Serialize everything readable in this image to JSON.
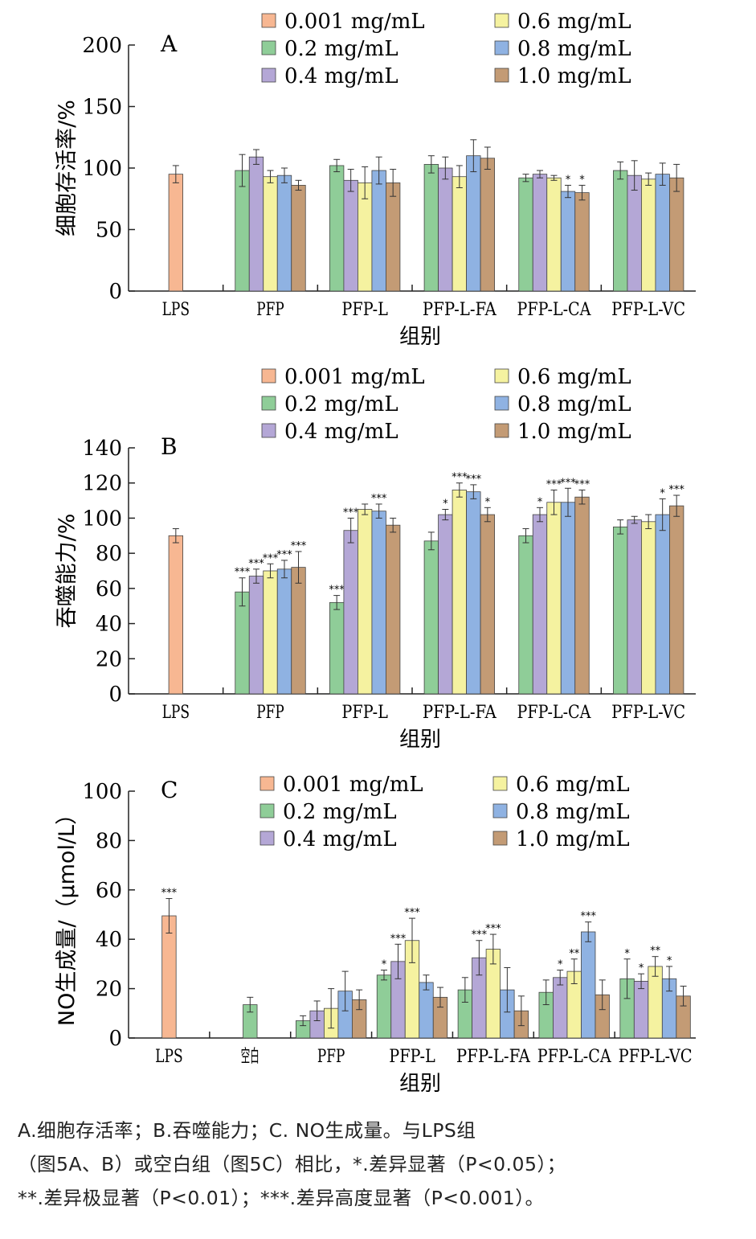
{
  "chart_data": [
    {
      "type": "bar",
      "panel_label": "A",
      "xlabel": "组别",
      "ylabel": "细胞存活率/%",
      "ylim": [
        0,
        200
      ],
      "yticks": [
        0,
        50,
        100,
        150,
        200
      ],
      "legend": [
        "0.001 mg/mL",
        "0.6 mg/mL",
        "0.2 mg/mL",
        "0.8 mg/mL",
        "0.4 mg/mL",
        "1.0 mg/mL"
      ],
      "categories": [
        {
          "name": "LPS",
          "bars": [
            {
              "series": "0.001 mg/mL",
              "value": 95,
              "err": 7,
              "sig": ""
            }
          ]
        },
        {
          "name": "PFP",
          "bars": [
            {
              "series": "0.2 mg/mL",
              "value": 98,
              "err": 13,
              "sig": ""
            },
            {
              "series": "0.4 mg/mL",
              "value": 109,
              "err": 6,
              "sig": ""
            },
            {
              "series": "0.6 mg/mL",
              "value": 93,
              "err": 5,
              "sig": ""
            },
            {
              "series": "0.8 mg/mL",
              "value": 94,
              "err": 6,
              "sig": ""
            },
            {
              "series": "1.0 mg/mL",
              "value": 86,
              "err": 4,
              "sig": ""
            }
          ]
        },
        {
          "name": "PFP-L",
          "bars": [
            {
              "series": "0.2 mg/mL",
              "value": 102,
              "err": 5,
              "sig": ""
            },
            {
              "series": "0.4 mg/mL",
              "value": 90,
              "err": 9,
              "sig": ""
            },
            {
              "series": "0.6 mg/mL",
              "value": 88,
              "err": 13,
              "sig": ""
            },
            {
              "series": "0.8 mg/mL",
              "value": 98,
              "err": 11,
              "sig": ""
            },
            {
              "series": "1.0 mg/mL",
              "value": 88,
              "err": 11,
              "sig": ""
            }
          ]
        },
        {
          "name": "PFP-L-FA",
          "bars": [
            {
              "series": "0.2 mg/mL",
              "value": 103,
              "err": 7,
              "sig": ""
            },
            {
              "series": "0.4 mg/mL",
              "value": 100,
              "err": 9,
              "sig": ""
            },
            {
              "series": "0.6 mg/mL",
              "value": 93,
              "err": 9,
              "sig": ""
            },
            {
              "series": "0.8 mg/mL",
              "value": 110,
              "err": 13,
              "sig": ""
            },
            {
              "series": "1.0 mg/mL",
              "value": 108,
              "err": 9,
              "sig": ""
            }
          ]
        },
        {
          "name": "PFP-L-CA",
          "bars": [
            {
              "series": "0.2 mg/mL",
              "value": 92,
              "err": 3,
              "sig": ""
            },
            {
              "series": "0.4 mg/mL",
              "value": 95,
              "err": 3,
              "sig": ""
            },
            {
              "series": "0.6 mg/mL",
              "value": 92,
              "err": 2,
              "sig": ""
            },
            {
              "series": "0.8 mg/mL",
              "value": 81,
              "err": 5,
              "sig": "*"
            },
            {
              "series": "1.0 mg/mL",
              "value": 80,
              "err": 6,
              "sig": "*"
            }
          ]
        },
        {
          "name": "PFP-L-VC",
          "bars": [
            {
              "series": "0.2 mg/mL",
              "value": 98,
              "err": 7,
              "sig": ""
            },
            {
              "series": "0.4 mg/mL",
              "value": 94,
              "err": 12,
              "sig": ""
            },
            {
              "series": "0.6 mg/mL",
              "value": 91,
              "err": 5,
              "sig": ""
            },
            {
              "series": "0.8 mg/mL",
              "value": 95,
              "err": 9,
              "sig": ""
            },
            {
              "series": "1.0 mg/mL",
              "value": 92,
              "err": 11,
              "sig": ""
            }
          ]
        }
      ]
    },
    {
      "type": "bar",
      "panel_label": "B",
      "xlabel": "组别",
      "ylabel": "吞噬能力/%",
      "ylim": [
        0,
        140
      ],
      "yticks": [
        0,
        20,
        40,
        60,
        80,
        100,
        120,
        140
      ],
      "legend": [
        "0.001 mg/mL",
        "0.6 mg/mL",
        "0.2 mg/mL",
        "0.8 mg/mL",
        "0.4 mg/mL",
        "1.0 mg/mL"
      ],
      "categories": [
        {
          "name": "LPS",
          "bars": [
            {
              "series": "0.001 mg/mL",
              "value": 90,
              "err": 4,
              "sig": ""
            }
          ]
        },
        {
          "name": "PFP",
          "bars": [
            {
              "series": "0.2 mg/mL",
              "value": 58,
              "err": 8,
              "sig": "***"
            },
            {
              "series": "0.4 mg/mL",
              "value": 67,
              "err": 4,
              "sig": "***"
            },
            {
              "series": "0.6 mg/mL",
              "value": 70,
              "err": 4,
              "sig": "***"
            },
            {
              "series": "0.8 mg/mL",
              "value": 71,
              "err": 5,
              "sig": "***"
            },
            {
              "series": "1.0 mg/mL",
              "value": 72,
              "err": 9,
              "sig": "***"
            }
          ]
        },
        {
          "name": "PFP-L",
          "bars": [
            {
              "series": "0.2 mg/mL",
              "value": 52,
              "err": 4,
              "sig": "***"
            },
            {
              "series": "0.4 mg/mL",
              "value": 93,
              "err": 7,
              "sig": "***"
            },
            {
              "series": "0.6 mg/mL",
              "value": 105,
              "err": 3,
              "sig": ""
            },
            {
              "series": "0.8 mg/mL",
              "value": 104,
              "err": 4,
              "sig": "***"
            },
            {
              "series": "1.0 mg/mL",
              "value": 96,
              "err": 4,
              "sig": ""
            }
          ]
        },
        {
          "name": "PFP-L-FA",
          "bars": [
            {
              "series": "0.2 mg/mL",
              "value": 87,
              "err": 5,
              "sig": ""
            },
            {
              "series": "0.4 mg/mL",
              "value": 102,
              "err": 3,
              "sig": "*"
            },
            {
              "series": "0.6 mg/mL",
              "value": 116,
              "err": 4,
              "sig": "***"
            },
            {
              "series": "0.8 mg/mL",
              "value": 115,
              "err": 4,
              "sig": "***"
            },
            {
              "series": "1.0 mg/mL",
              "value": 102,
              "err": 4,
              "sig": "*"
            }
          ]
        },
        {
          "name": "PFP-L-CA",
          "bars": [
            {
              "series": "0.2 mg/mL",
              "value": 90,
              "err": 4,
              "sig": ""
            },
            {
              "series": "0.4 mg/mL",
              "value": 102,
              "err": 4,
              "sig": "*"
            },
            {
              "series": "0.6 mg/mL",
              "value": 109,
              "err": 7,
              "sig": "***"
            },
            {
              "series": "0.8 mg/mL",
              "value": 109,
              "err": 8,
              "sig": "***"
            },
            {
              "series": "1.0 mg/mL",
              "value": 112,
              "err": 4,
              "sig": "***"
            }
          ]
        },
        {
          "name": "PFP-L-VC",
          "bars": [
            {
              "series": "0.2 mg/mL",
              "value": 95,
              "err": 4,
              "sig": ""
            },
            {
              "series": "0.4 mg/mL",
              "value": 99,
              "err": 2,
              "sig": ""
            },
            {
              "series": "0.6 mg/mL",
              "value": 98,
              "err": 4,
              "sig": ""
            },
            {
              "series": "0.8 mg/mL",
              "value": 102,
              "err": 9,
              "sig": "*"
            },
            {
              "series": "1.0 mg/mL",
              "value": 107,
              "err": 6,
              "sig": "***"
            }
          ]
        }
      ]
    },
    {
      "type": "bar",
      "panel_label": "C",
      "xlabel": "组别",
      "ylabel": "NO生成量/（μmol/L）",
      "ylim": [
        0,
        100
      ],
      "yticks": [
        0,
        20,
        40,
        60,
        80,
        100
      ],
      "legend": [
        "0.001 mg/mL",
        "0.6 mg/mL",
        "0.2 mg/mL",
        "0.8 mg/mL",
        "0.4 mg/mL",
        "1.0 mg/mL"
      ],
      "categories": [
        {
          "name": "LPS",
          "bars": [
            {
              "series": "0.001 mg/mL",
              "value": 49.5,
              "err": 7,
              "sig": "***"
            }
          ]
        },
        {
          "name": "空白",
          "bars": [
            {
              "series": "0.2 mg/mL",
              "value": 13.5,
              "err": 3,
              "sig": ""
            }
          ]
        },
        {
          "name": "PFP",
          "bars": [
            {
              "series": "0.2 mg/mL",
              "value": 7,
              "err": 2,
              "sig": ""
            },
            {
              "series": "0.4 mg/mL",
              "value": 11,
              "err": 4,
              "sig": ""
            },
            {
              "series": "0.6 mg/mL",
              "value": 12,
              "err": 8,
              "sig": ""
            },
            {
              "series": "0.8 mg/mL",
              "value": 19,
              "err": 8,
              "sig": ""
            },
            {
              "series": "1.0 mg/mL",
              "value": 15.5,
              "err": 4,
              "sig": ""
            }
          ]
        },
        {
          "name": "PFP-L",
          "bars": [
            {
              "series": "0.2 mg/mL",
              "value": 25.5,
              "err": 2,
              "sig": "*"
            },
            {
              "series": "0.4 mg/mL",
              "value": 31,
              "err": 7,
              "sig": "***"
            },
            {
              "series": "0.6 mg/mL",
              "value": 39.5,
              "err": 9,
              "sig": "***"
            },
            {
              "series": "0.8 mg/mL",
              "value": 22.5,
              "err": 3,
              "sig": ""
            },
            {
              "series": "1.0 mg/mL",
              "value": 16.5,
              "err": 4,
              "sig": ""
            }
          ]
        },
        {
          "name": "PFP-L-FA",
          "bars": [
            {
              "series": "0.2 mg/mL",
              "value": 19.5,
              "err": 5,
              "sig": ""
            },
            {
              "series": "0.4 mg/mL",
              "value": 32.5,
              "err": 7,
              "sig": "***"
            },
            {
              "series": "0.6 mg/mL",
              "value": 36,
              "err": 6,
              "sig": "***"
            },
            {
              "series": "0.8 mg/mL",
              "value": 19.5,
              "err": 9,
              "sig": ""
            },
            {
              "series": "1.0 mg/mL",
              "value": 11,
              "err": 6,
              "sig": ""
            }
          ]
        },
        {
          "name": "PFP-L-CA",
          "bars": [
            {
              "series": "0.2 mg/mL",
              "value": 18.5,
              "err": 5,
              "sig": ""
            },
            {
              "series": "0.4 mg/mL",
              "value": 24.5,
              "err": 3,
              "sig": "*"
            },
            {
              "series": "0.6 mg/mL",
              "value": 27,
              "err": 5,
              "sig": "**"
            },
            {
              "series": "0.8 mg/mL",
              "value": 43,
              "err": 4,
              "sig": "***"
            },
            {
              "series": "1.0 mg/mL",
              "value": 17.5,
              "err": 6,
              "sig": ""
            }
          ]
        },
        {
          "name": "PFP-L-VC",
          "bars": [
            {
              "series": "0.2 mg/mL",
              "value": 24,
              "err": 8,
              "sig": "*"
            },
            {
              "series": "0.4 mg/mL",
              "value": 23,
              "err": 3,
              "sig": "*"
            },
            {
              "series": "0.6 mg/mL",
              "value": 29,
              "err": 4,
              "sig": "**"
            },
            {
              "series": "0.8 mg/mL",
              "value": 24,
              "err": 5,
              "sig": "*"
            },
            {
              "series": "1.0 mg/mL",
              "value": 17,
              "err": 4,
              "sig": ""
            }
          ]
        }
      ]
    }
  ],
  "series_colors": {
    "0.001 mg/mL": "#f7b792",
    "0.2 mg/mL": "#8fcd98",
    "0.4 mg/mL": "#b4a7d6",
    "0.6 mg/mL": "#f5f2a0",
    "0.8 mg/mL": "#8fb2e2",
    "1.0 mg/mL": "#c39b75"
  },
  "caption": {
    "line1": "A.细胞存活率；B.吞噬能力；C. NO生成量。与LPS组",
    "line2": "（图5A、B）或空白组（图5C）相比，*.差异显著（P<0.05）；",
    "line3": "**.差异极显著（P<0.01）；***.差异高度显著（P<0.001）。"
  }
}
